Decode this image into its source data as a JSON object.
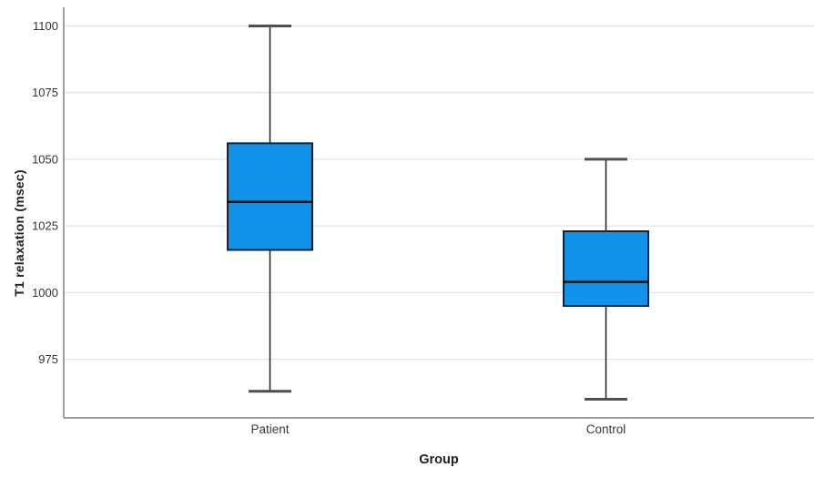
{
  "chart_data": {
    "type": "boxplot",
    "title": "",
    "xlabel": "Group",
    "ylabel": "T1 relaxation (msec)",
    "categories": [
      "Patient",
      "Control"
    ],
    "series": [
      {
        "name": "Patient",
        "min": 963,
        "q1": 1016,
        "median": 1034,
        "q3": 1056,
        "max": 1100
      },
      {
        "name": "Control",
        "min": 960,
        "q1": 995,
        "median": 1004,
        "q3": 1023,
        "max": 1050
      }
    ],
    "yticks": [
      975,
      1000,
      1025,
      1050,
      1075,
      1100
    ],
    "ylim": [
      953,
      1107
    ],
    "grid": true,
    "legend": "none",
    "units": "msec",
    "colors": {
      "box_fill": "#1192E8",
      "box_border": "#1A222B",
      "median": "#0B0E11",
      "whisker": "#1F1F1F",
      "whisker_cap": "#4F4F4F",
      "gridline": "#DEDEDE",
      "axis": "#9E9E9E",
      "tick_text": "#333333",
      "category_text": "#3A3A3A",
      "background": "#FFFFFF"
    }
  }
}
